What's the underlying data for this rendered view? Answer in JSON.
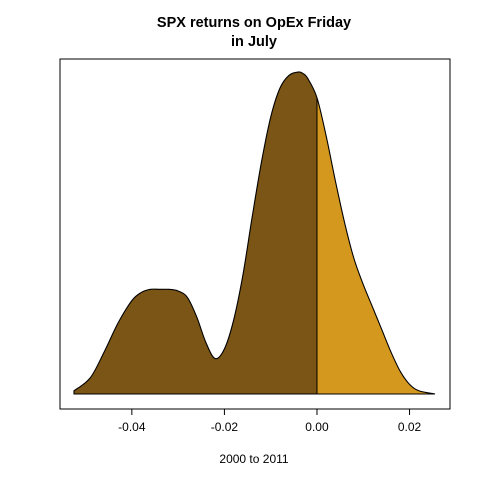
{
  "chart_data": {
    "type": "area",
    "title_line1": "SPX returns on OpEx Friday",
    "title_line2": "in July",
    "xlabel": "2000 to 2011",
    "ylabel": "",
    "xlim": [
      -0.0525,
      0.0255
    ],
    "ylim": [
      0,
      1
    ],
    "x_ticks": [
      -0.04,
      -0.02,
      0.0,
      0.02
    ],
    "x_tick_labels": [
      "-0.04",
      "-0.02",
      "0.00",
      "0.02"
    ],
    "split_at": 0.0,
    "series": [
      {
        "fill_color_below_split": "#7a5515",
        "fill_color_above_split": "#d4981f",
        "x": [
          -0.0525,
          -0.049,
          -0.046,
          -0.043,
          -0.04,
          -0.038,
          -0.036,
          -0.034,
          -0.032,
          -0.03,
          -0.028,
          -0.026,
          -0.024,
          -0.022,
          -0.02,
          -0.018,
          -0.016,
          -0.014,
          -0.012,
          -0.01,
          -0.008,
          -0.006,
          -0.004,
          -0.003,
          -0.002,
          0.0,
          0.002,
          0.004,
          0.006,
          0.008,
          0.01,
          0.012,
          0.014,
          0.016,
          0.018,
          0.02,
          0.022,
          0.0255
        ],
        "y": [
          0.01,
          0.05,
          0.13,
          0.22,
          0.29,
          0.315,
          0.325,
          0.325,
          0.325,
          0.32,
          0.3,
          0.24,
          0.16,
          0.11,
          0.14,
          0.23,
          0.37,
          0.55,
          0.72,
          0.86,
          0.95,
          0.99,
          1.0,
          0.995,
          0.98,
          0.92,
          0.8,
          0.66,
          0.53,
          0.42,
          0.34,
          0.27,
          0.2,
          0.13,
          0.07,
          0.03,
          0.01,
          0.0
        ]
      }
    ],
    "grid": false,
    "legend": "none"
  }
}
